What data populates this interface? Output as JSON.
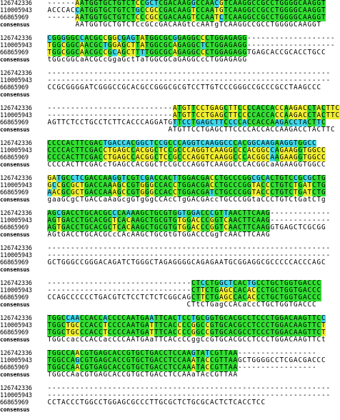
{
  "colors": {
    "identical": "#33dd33",
    "similar": "#f0ee33",
    "variant": "#3fd6e8"
  },
  "blocks": [
    {
      "rows": [
        {
          "name": "126742336",
          "seq": "------AATGGTGCTGTCTCCGCTCGACAAGGCCAACGTCAAGGCCGCCTGGGGCAAGGT"
        },
        {
          "name": "110005943",
          "seq": "ACCCACCATGGTGCTGTCTGCCGCCGACAAGTCCAATGTCAAGGCCGCCTGGGGCAAGGT"
        },
        {
          "name": "66865969",
          "seq": "------AATGGTGCTGTCTCCCGCCGACAAGTCCAATCTCAAGGCCGCCTGGGGCAAGGT"
        },
        {
          "name": "consensus",
          "seq": "      AATGGTGCTGTCTCcGCcGACAAGtCcAATgTCAAGGCCGCCTGGGGCAAGGT"
        }
      ]
    },
    {
      "rows": [
        {
          "name": "126742336",
          "seq": "CGGGGGCCACGCCGGCGAGTATGGCGCGGAGGCCCTGGAGAGG-------------------"
        },
        {
          "name": "110005943",
          "seq": "TGGCGGCAACGCTGGAGCTTATGGCGCAGAGGCTCTGGAGAGG-------------------"
        },
        {
          "name": "66865969",
          "seq": "TGGCGGCAACGCCGCAGCTTTTGGCGCAGAGGCCCTGGAGAGGTGAGCACCGCACCTGCC"
        },
        {
          "name": "consensus",
          "seq": "tGGcGGCaACGCcGgaGctTaTGGCGCaGAGGCcCTGGAGAGG"
        }
      ]
    },
    {
      "rows": [
        {
          "name": "126742336",
          "seq": "-------------------------------------------------------------"
        },
        {
          "name": "110005943",
          "seq": "-------------------------------------------------------------"
        },
        {
          "name": "66865969",
          "seq": "CCGCGGGGATCGGGCCGCACGCCGGGCGCGTCCTTGTCCCGGGCCGCCCGCCTAAGCCC"
        },
        {
          "name": "consensus",
          "seq": ""
        }
      ]
    },
    {
      "rows": [
        {
          "name": "126742336",
          "seq": "---------------------------ATGTTCCTGAGCTTCCCCACCACCAAGACCTACTTC"
        },
        {
          "name": "110005943",
          "seq": "---------------------------ATGTTCCTGAGCTTCCCCACCACCAAGACCTACTTC"
        },
        {
          "name": "66865969",
          "seq": "AGTTCTCCTGCCTCTTCACCCAGGATGTTCCTGAGCTTCCCCACCACCAAGACCTACTTC"
        },
        {
          "name": "consensus",
          "seq": "                          ATGTTCCTGAGCTTCCCCACCACCAAGACCTACTTC"
        }
      ]
    },
    {
      "rows": [
        {
          "name": "126742336",
          "seq": "CCCCACTTCGACTGACCACGGCTCCGCCCAGGTCAAGGCCCACGGCAAGAAGGTGGCC"
        },
        {
          "name": "110005943",
          "seq": "CCCCACTTCGACCTGAGCCACGGCTCCGCCCAGGTCAAGGCCCACGGCCAGAAGGTGGCC"
        },
        {
          "name": "66865969",
          "seq": "CCCCACTTCGACCTGAGCCACGGCTCCGCCCAGGTCAAGGCCCACGGCAAGAAGGTGGCC"
        },
        {
          "name": "consensus",
          "seq": "CCCCACTTCGACcTGAGCCACGGCTCCGCCCAGGTCAAGGCCCACGGCaAGAAGGTGGCC"
        }
      ]
    },
    {
      "rows": [
        {
          "name": "126742336",
          "seq": "GATGCCTCGACCAAGGTCGTCGACCACTTGGACGACCTGCCCGGCGCACTGTCCGCGCTG"
        },
        {
          "name": "110005943",
          "seq": "GCCGCGCTGACCAAAGCCGTGGGCCACCTGGACGACCTGCCCGGTACCCTGTCTGATCTG"
        },
        {
          "name": "66865969",
          "seq": "AACGCGCTGACCAAAGCCGTGGGCCACCTGGACGATCTGCCCGGTACCCTGTCTGATCTG"
        },
        {
          "name": "consensus",
          "seq": "gaaGCgCTGACCaAaGcgGTgGgCCAcCTgGACGAccTGCCCGGtaCCCTGTCtGatCTg"
        }
      ]
    },
    {
      "rows": [
        {
          "name": "126742336",
          "seq": "AGCGACCTGCACGCCCAAAAGCTGCGTGGTGGACCCGTTAACTTCAAG-------------"
        },
        {
          "name": "110005943",
          "seq": "AGTGACCTGCACGCTCACAAGCTGCGTGTGGACCCGGTCAACTTCAAG-------------"
        },
        {
          "name": "66865969",
          "seq": "AGTGACCTGCACGCTCACAAGCTGCGTGTGGACCCGGTCAACTTCAAGGTGAGCTCGCGG"
        },
        {
          "name": "consensus",
          "seq": "AGtGACCTGCACGCcCAcAAGCTGCGtGTGGACCCGgTcAACTTCAAG"
        }
      ]
    },
    {
      "rows": [
        {
          "name": "126742336",
          "seq": "-------------------------------------------------------------"
        },
        {
          "name": "110005943",
          "seq": "-------------------------------------------------------------"
        },
        {
          "name": "66865969",
          "seq": "GCTGGGCCGGGACAGATCTGGGCTAGAGGGGCAGAGAATGCGGAGGCGCCCCCACCCAGC"
        },
        {
          "name": "consensus",
          "seq": ""
        }
      ]
    },
    {
      "rows": [
        {
          "name": "126742336",
          "seq": "-------------------------------CTCCTGGCTCACTGCCTGCTGGTGACCC"
        },
        {
          "name": "110005943",
          "seq": "-------------------------------CTTCTGAGCCACACCCTGCTGGTGACCC"
        },
        {
          "name": "66865969",
          "seq": "CCAGCCCCCCTGACGTCTCCTCTCTCGGCAGCTTCTGAGCCACACCCTGCTGGTGACCC"
        },
        {
          "name": "consensus",
          "seq": "                              CTtCTGagCCACaCcCTGCTGGTGACCC"
        }
      ]
    },
    {
      "rows": [
        {
          "name": "126742336",
          "seq": "TGGCCAACCACCACCCCAATGAATTCACTCCTGCGGTGCACGCCTCCCTGGACAAGTTCC"
        },
        {
          "name": "110005943",
          "seq": "TGGCTGCCCACCTCCCCAATGATTTCACCCCGGCCGTGCACGCCTCCCTGGACAAGTTCT"
        },
        {
          "name": "66865969",
          "seq": "TGGCTGCCCACCTCCCCAATGATTTCACCCCGGCCGTGCACGCCTCCCTGGACAAGTTCT"
        },
        {
          "name": "consensus",
          "seq": "TGGCcacCCACCacCCCAATGAaTTCACcCCggCcGTGCACGCCTCCCTGGACAAGTTCt"
        }
      ]
    },
    {
      "rows": [
        {
          "name": "126742336",
          "seq": "TGGCCAACGTGAGCACCGTGCTGACCTCCAAGTATCGTTAA-----------------"
        },
        {
          "name": "110005943",
          "seq": "TGGCCAGCGTGAGCACCGTGCTGACCTCCAAATACCGTTAAGCTGGGGCCTCGACGACCC"
        },
        {
          "name": "66865969",
          "seq": "TGGCCAACGTGAGCACCGTGCTGACCTCCAAATACCGTTAA-----------------"
        },
        {
          "name": "consensus",
          "seq": "TGGCCAaCGTGAGCACCGTGCTGACCTCCAAaTAcCGTTAA"
        }
      ]
    },
    {
      "rows": [
        {
          "name": "126742336",
          "seq": "-------------------------------------------------------------"
        },
        {
          "name": "110005943",
          "seq": "-------------------------------------------------------------"
        },
        {
          "name": "66865969",
          "seq": "CCTACCCTGGCCTGGAGCGCCCTTGCGCTCTGCGCACTCTCACCTCC"
        },
        {
          "name": "consensus",
          "seq": ""
        }
      ]
    }
  ]
}
